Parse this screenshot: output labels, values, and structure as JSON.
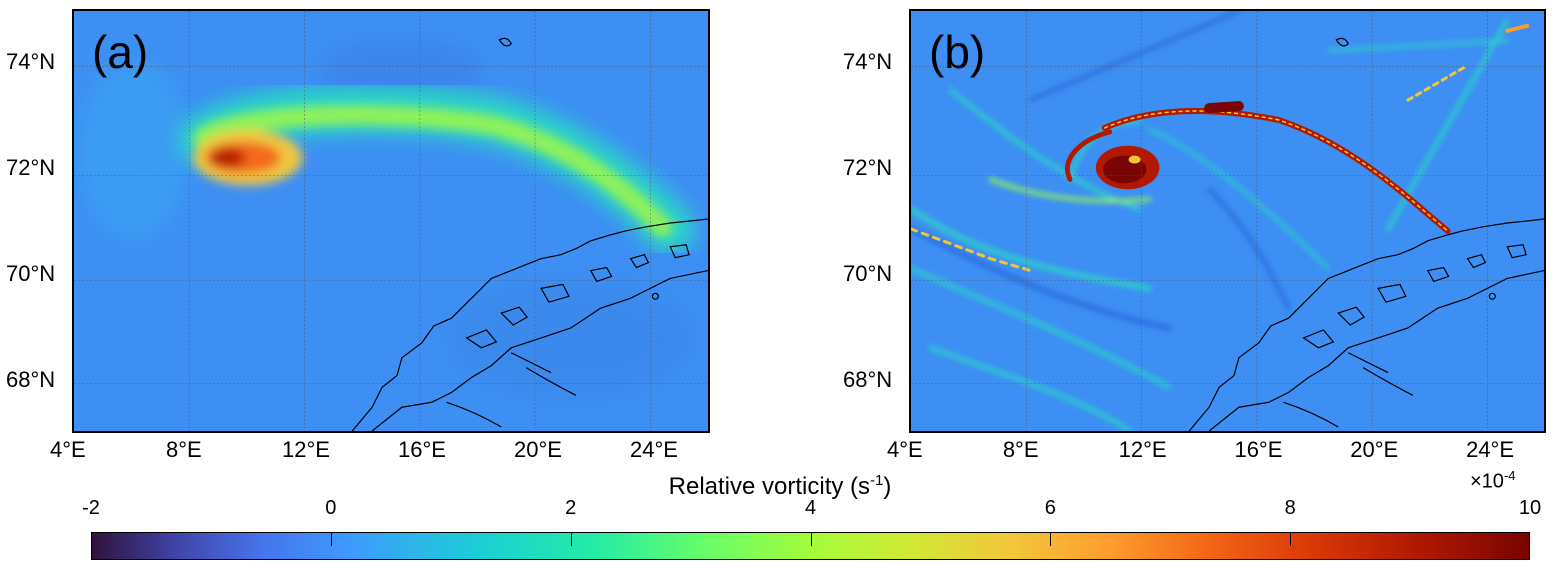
{
  "panels": [
    {
      "label": "(a)"
    },
    {
      "label": "(b)"
    }
  ],
  "axes": {
    "lat_labels": [
      "74°N",
      "72°N",
      "70°N",
      "68°N"
    ],
    "lon_labels": [
      "4°E",
      "8°E",
      "12°E",
      "16°E",
      "20°E",
      "24°E"
    ],
    "lat_values": [
      74,
      72,
      70,
      68
    ],
    "lon_values": [
      4,
      8,
      12,
      16,
      20,
      24
    ],
    "lon_range": [
      4,
      26
    ],
    "lat_range": [
      67,
      75
    ],
    "grid": true
  },
  "colorbar": {
    "title_main": "Relative vorticity (s",
    "title_sup": "-1",
    "title_end": ")",
    "exponent_prefix": "×10",
    "exponent_sup": "-4",
    "tick_labels": [
      "-2",
      "0",
      "2",
      "4",
      "6",
      "8",
      "10"
    ],
    "range": [
      -2,
      10
    ],
    "colormap": "turbo",
    "placement": "bottom"
  },
  "colors": {
    "background_field": "#3a96f6",
    "low": "#4145ab",
    "mid": "#61fc6c",
    "high": "#7a0402",
    "coast": "#000000"
  }
}
